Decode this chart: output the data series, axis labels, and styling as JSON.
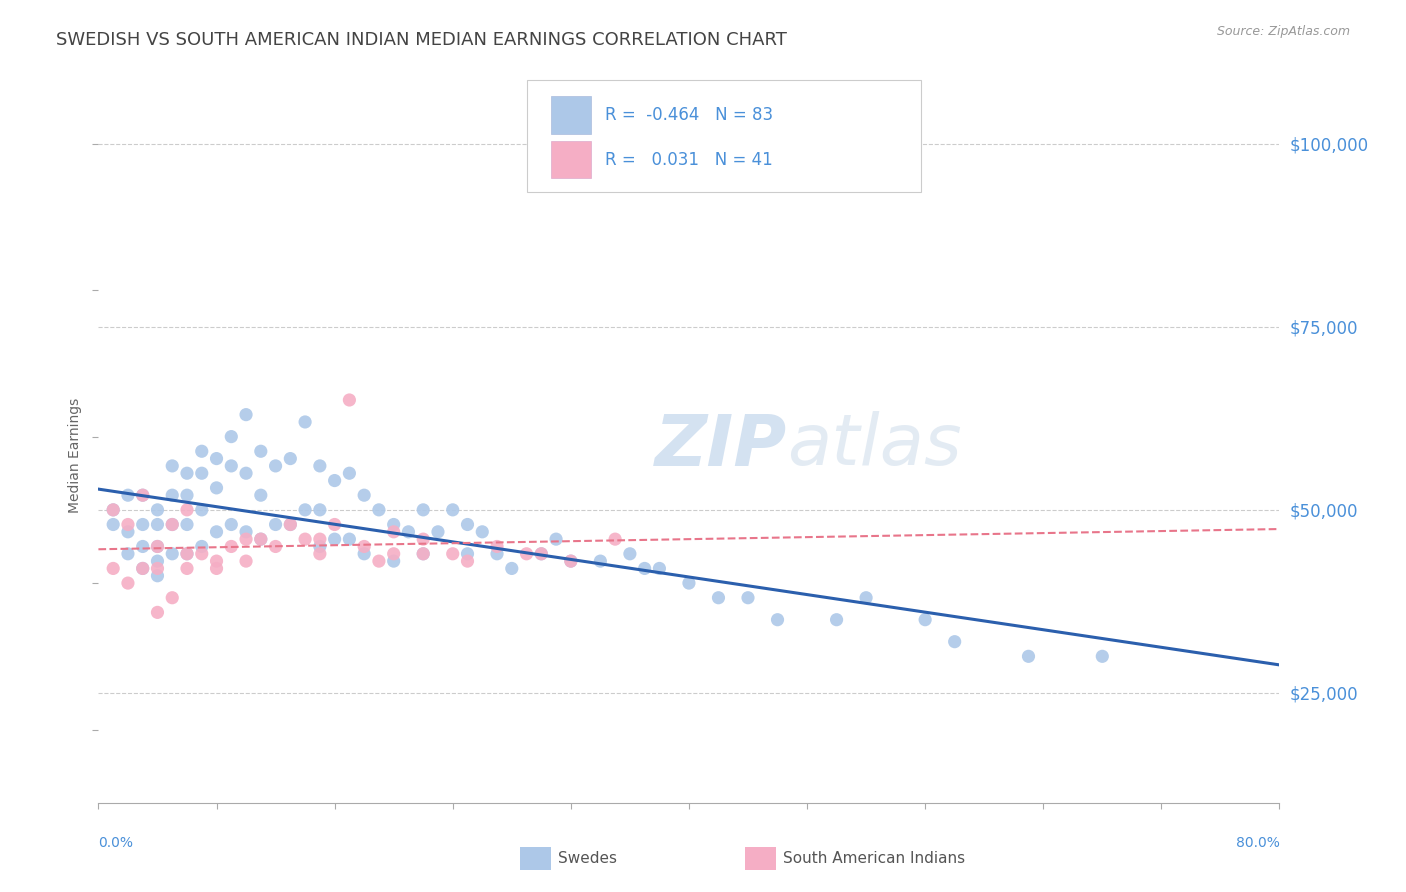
{
  "title": "SWEDISH VS SOUTH AMERICAN INDIAN MEDIAN EARNINGS CORRELATION CHART",
  "source": "Source: ZipAtlas.com",
  "ylabel": "Median Earnings",
  "xlim": [
    0.0,
    0.8
  ],
  "ylim": [
    10000,
    105000
  ],
  "series1_label": "Swedes",
  "series2_label": "South American Indians",
  "series1_color": "#adc8e8",
  "series2_color": "#f5aec5",
  "series1_line_color": "#2b5fad",
  "series2_line_color": "#e8758a",
  "background_color": "#ffffff",
  "title_color": "#444444",
  "title_fontsize": 13,
  "ytick_color": "#4a90d9",
  "legend_r1_val": "-0.464",
  "legend_r1_n": "83",
  "legend_r2_val": "0.031",
  "legend_r2_n": "41",
  "swedes_x": [
    0.01,
    0.01,
    0.02,
    0.02,
    0.02,
    0.03,
    0.03,
    0.03,
    0.03,
    0.04,
    0.04,
    0.04,
    0.04,
    0.04,
    0.05,
    0.05,
    0.05,
    0.05,
    0.06,
    0.06,
    0.06,
    0.06,
    0.07,
    0.07,
    0.07,
    0.07,
    0.08,
    0.08,
    0.08,
    0.09,
    0.09,
    0.09,
    0.1,
    0.1,
    0.1,
    0.11,
    0.11,
    0.11,
    0.12,
    0.12,
    0.13,
    0.13,
    0.14,
    0.14,
    0.15,
    0.15,
    0.15,
    0.16,
    0.16,
    0.17,
    0.17,
    0.18,
    0.18,
    0.19,
    0.2,
    0.2,
    0.21,
    0.22,
    0.22,
    0.23,
    0.24,
    0.25,
    0.25,
    0.26,
    0.27,
    0.28,
    0.3,
    0.31,
    0.32,
    0.34,
    0.36,
    0.37,
    0.38,
    0.4,
    0.42,
    0.44,
    0.46,
    0.5,
    0.52,
    0.56,
    0.58,
    0.63,
    0.68
  ],
  "swedes_y": [
    50000,
    48000,
    52000,
    47000,
    44000,
    52000,
    48000,
    45000,
    42000,
    50000,
    48000,
    45000,
    43000,
    41000,
    56000,
    52000,
    48000,
    44000,
    55000,
    52000,
    48000,
    44000,
    58000,
    55000,
    50000,
    45000,
    57000,
    53000,
    47000,
    60000,
    56000,
    48000,
    63000,
    55000,
    47000,
    58000,
    52000,
    46000,
    56000,
    48000,
    57000,
    48000,
    62000,
    50000,
    56000,
    50000,
    45000,
    54000,
    46000,
    55000,
    46000,
    52000,
    44000,
    50000,
    48000,
    43000,
    47000,
    50000,
    44000,
    47000,
    50000,
    48000,
    44000,
    47000,
    44000,
    42000,
    44000,
    46000,
    43000,
    43000,
    44000,
    42000,
    42000,
    40000,
    38000,
    38000,
    35000,
    35000,
    38000,
    35000,
    32000,
    30000,
    30000
  ],
  "sai_x": [
    0.01,
    0.01,
    0.02,
    0.02,
    0.03,
    0.03,
    0.04,
    0.04,
    0.05,
    0.05,
    0.06,
    0.06,
    0.07,
    0.08,
    0.09,
    0.1,
    0.11,
    0.12,
    0.13,
    0.14,
    0.15,
    0.16,
    0.17,
    0.18,
    0.19,
    0.2,
    0.22,
    0.24,
    0.25,
    0.27,
    0.29,
    0.3,
    0.32,
    0.35,
    0.2,
    0.22,
    0.1,
    0.15,
    0.08,
    0.06,
    0.04
  ],
  "sai_y": [
    50000,
    42000,
    48000,
    40000,
    52000,
    42000,
    45000,
    36000,
    48000,
    38000,
    50000,
    42000,
    44000,
    43000,
    45000,
    43000,
    46000,
    45000,
    48000,
    46000,
    46000,
    48000,
    65000,
    45000,
    43000,
    47000,
    46000,
    44000,
    43000,
    45000,
    44000,
    44000,
    43000,
    46000,
    44000,
    44000,
    46000,
    44000,
    42000,
    44000,
    42000
  ]
}
